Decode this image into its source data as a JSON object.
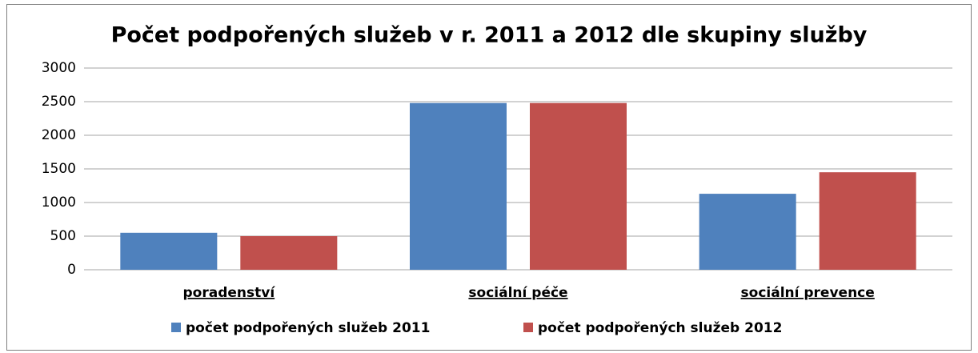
{
  "chart_data": {
    "type": "bar",
    "title": "Počet podpořených služeb v r. 2011 a 2012  dle skupiny služby",
    "categories": [
      "poradenství",
      "sociální péče",
      "sociální prevence"
    ],
    "series": [
      {
        "name": "počet podpořených služeb 2011",
        "color": "#4f81bd",
        "values": [
          550,
          2480,
          1130
        ]
      },
      {
        "name": "počet podpořených služeb 2012",
        "color": "#c0504d",
        "values": [
          500,
          2480,
          1450
        ]
      }
    ],
    "ylim": [
      0,
      3000
    ],
    "yticks": [
      0,
      500,
      1000,
      1500,
      2000,
      2500,
      3000
    ],
    "grid": true,
    "legend": "bottom"
  }
}
